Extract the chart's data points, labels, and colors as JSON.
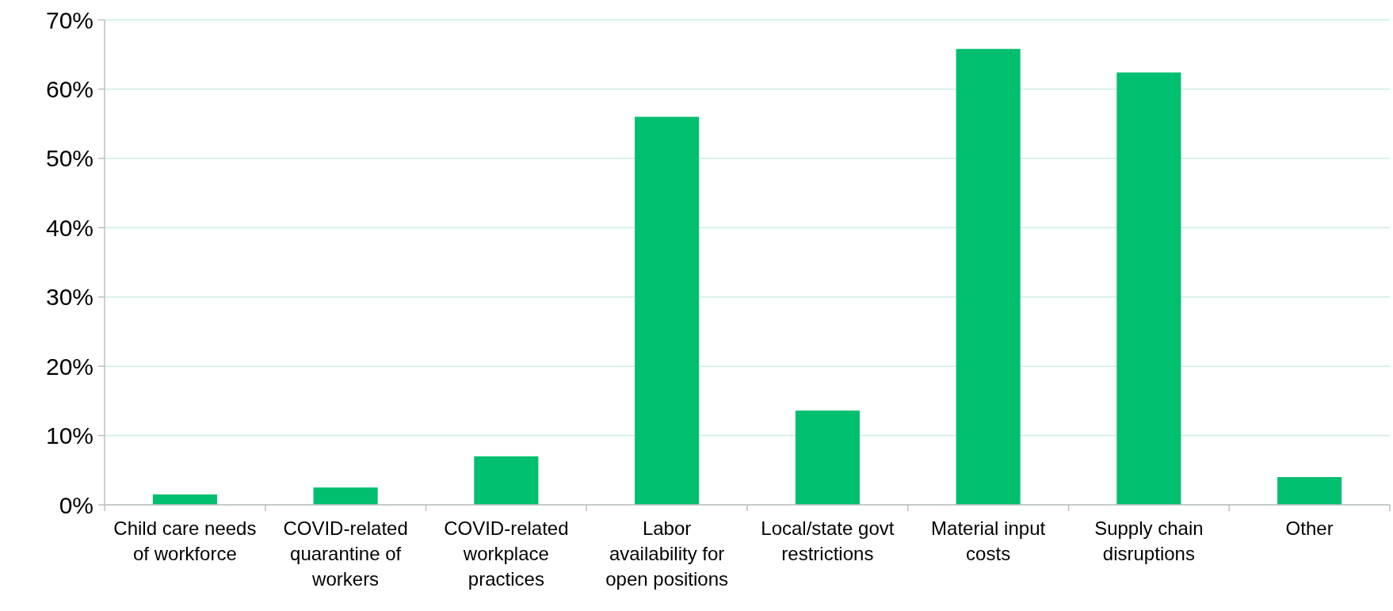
{
  "chart_data": {
    "type": "bar",
    "categories": [
      "Child care needs of workforce",
      "COVID-related quarantine of workers",
      "COVID-related workplace practices",
      "Labor availability for open positions",
      "Local/state govt restrictions",
      "Material input costs",
      "Supply chain disruptions",
      "Other"
    ],
    "values": [
      1.5,
      2.5,
      7,
      56,
      13.6,
      65.8,
      62.4,
      4
    ],
    "color": "#00bf6f",
    "ylim": [
      0,
      70
    ],
    "yticks": [
      {
        "value": 0,
        "label": "0%"
      },
      {
        "value": 10,
        "label": "10%"
      },
      {
        "value": 20,
        "label": "20%"
      },
      {
        "value": 30,
        "label": "30%"
      },
      {
        "value": 40,
        "label": "40%"
      },
      {
        "value": 50,
        "label": "50%"
      },
      {
        "value": 60,
        "label": "60%"
      },
      {
        "value": 70,
        "label": "70%"
      }
    ],
    "grid": "y"
  }
}
